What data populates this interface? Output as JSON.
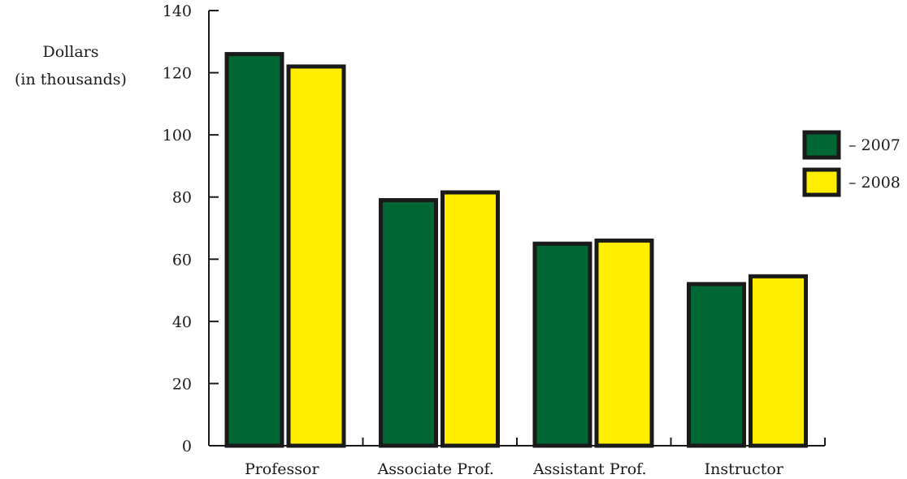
{
  "chart_data": {
    "type": "bar",
    "title": "",
    "ylabel_lines": [
      "Dollars",
      "(in thousands)"
    ],
    "xlabel": "",
    "categories": [
      "Professor",
      "Associate Prof.",
      "Assistant Prof.",
      "Instructor"
    ],
    "series": [
      {
        "name": "2007",
        "values": [
          126,
          79,
          65,
          52
        ],
        "color": "#006633"
      },
      {
        "name": "2008",
        "values": [
          122,
          81.5,
          66,
          54.5
        ],
        "color": "#ffee00"
      }
    ],
    "ylim": [
      0,
      140
    ],
    "yticks": [
      0,
      20,
      40,
      60,
      80,
      100,
      120,
      140
    ],
    "grid": false,
    "legend_position": "right",
    "legend_labels": [
      "–  2007",
      "–  2008"
    ]
  }
}
